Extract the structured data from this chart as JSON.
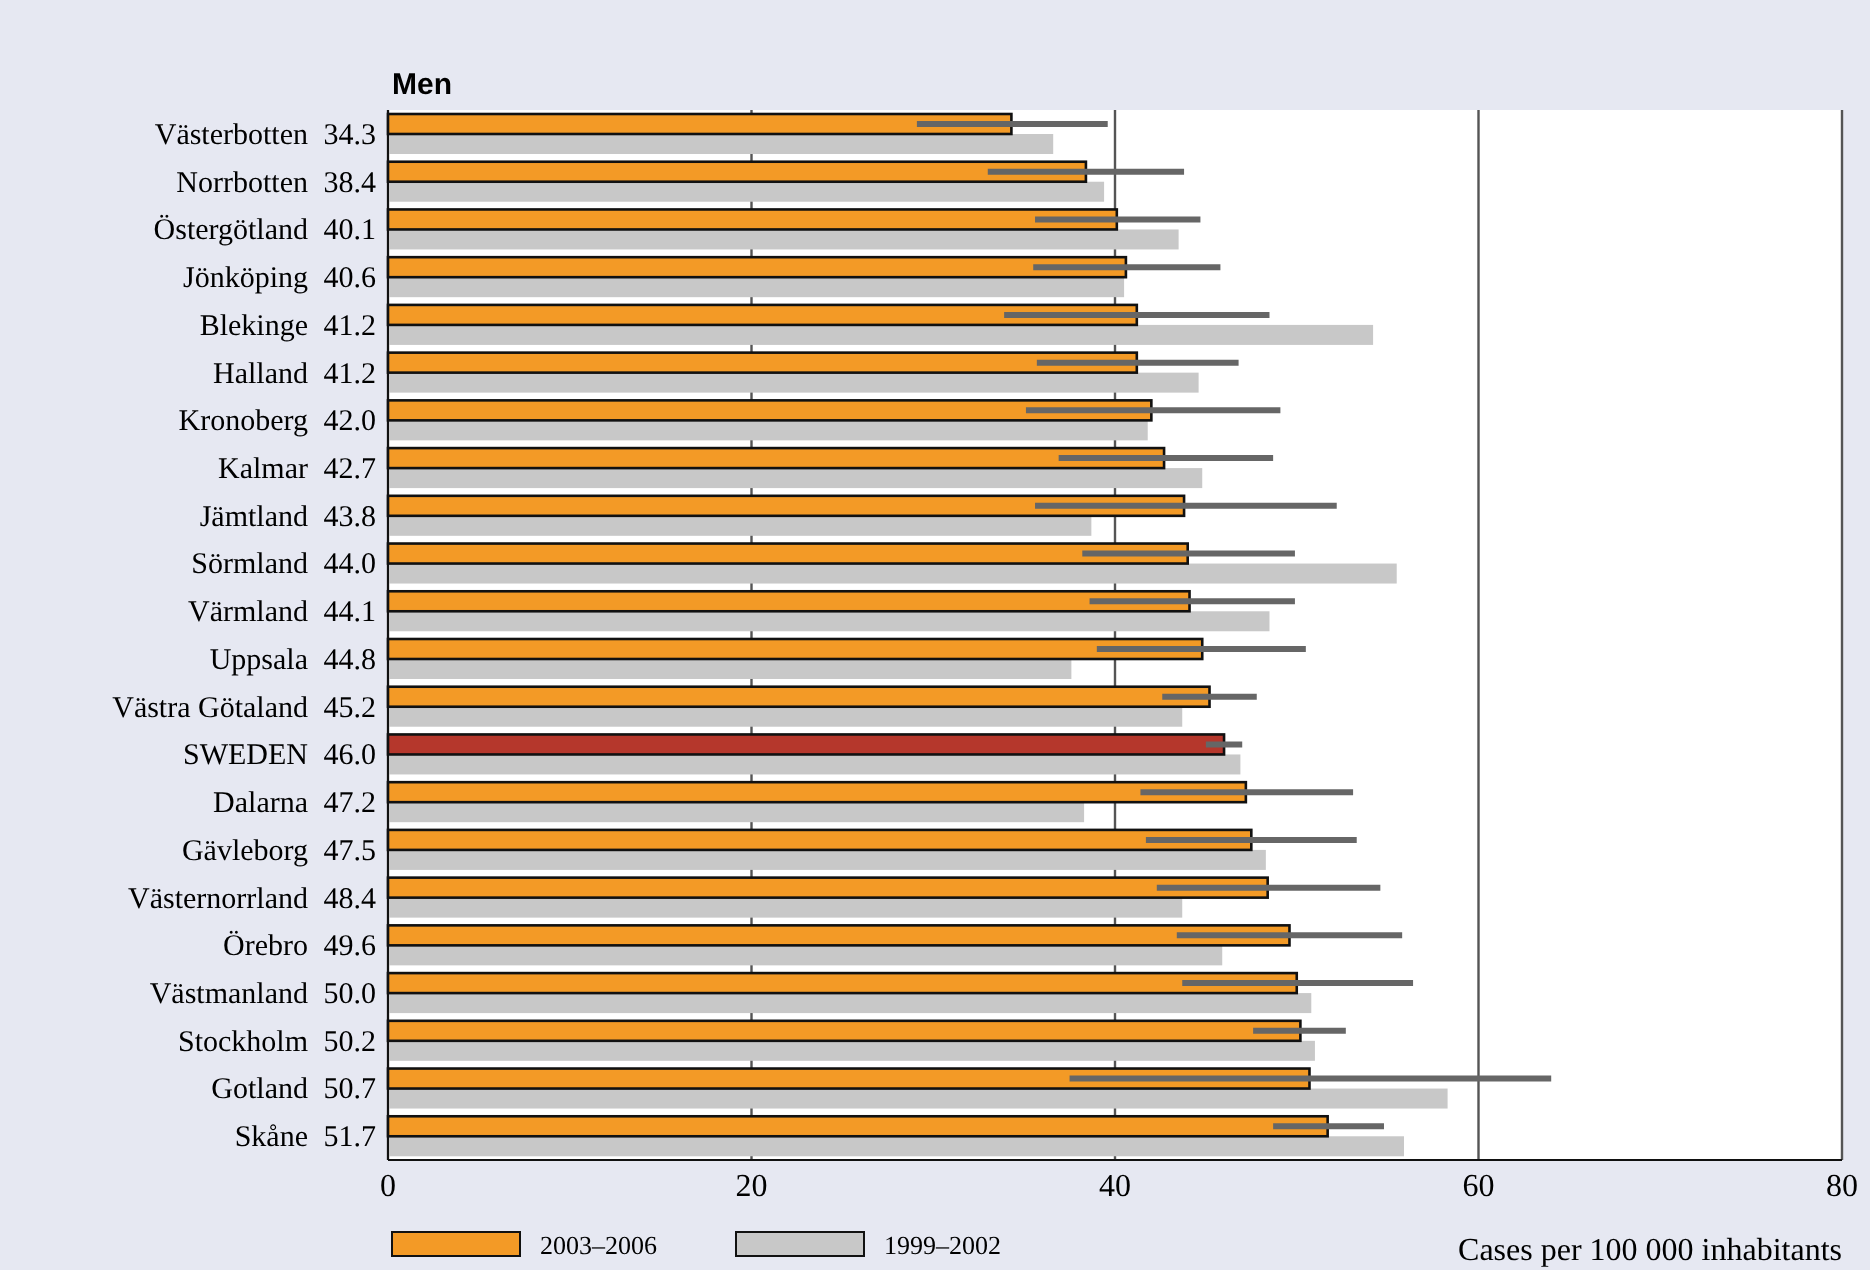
{
  "chart_data": {
    "type": "bar",
    "orientation": "horizontal",
    "title": "Men",
    "xlabel": "Cases per 100 000 inhabitants",
    "categories": [
      "Västerbotten",
      "Norrbotten",
      "Östergötland",
      "Jönköping",
      "Blekinge",
      "Halland",
      "Kronoberg",
      "Kalmar",
      "Jämtland",
      "Sörmland",
      "Värmland",
      "Uppsala",
      "Västra Götaland",
      "SWEDEN",
      "Dalarna",
      "Gävleborg",
      "Västernorrland",
      "Örebro",
      "Västmanland",
      "Stockholm",
      "Gotland",
      "Skåne"
    ],
    "series": [
      {
        "name": "2003–2006",
        "color": "#f39a26",
        "colors": [
          "#f39a26",
          "#f39a26",
          "#f39a26",
          "#f39a26",
          "#f39a26",
          "#f39a26",
          "#f39a26",
          "#f39a26",
          "#f39a26",
          "#f39a26",
          "#f39a26",
          "#f39a26",
          "#f39a26",
          "#b5372c",
          "#f39a26",
          "#f39a26",
          "#f39a26",
          "#f39a26",
          "#f39a26",
          "#f39a26",
          "#f39a26",
          "#f39a26"
        ],
        "values": [
          34.3,
          38.4,
          40.1,
          40.6,
          41.2,
          41.2,
          42.0,
          42.7,
          43.8,
          44.0,
          44.1,
          44.8,
          45.2,
          46.0,
          47.2,
          47.5,
          48.4,
          49.6,
          50.0,
          50.2,
          50.7,
          51.7
        ],
        "value_labels": [
          "34.3",
          "38.4",
          "40.1",
          "40.6",
          "41.2",
          "41.2",
          "42.0",
          "42.7",
          "43.8",
          "44.0",
          "44.1",
          "44.8",
          "45.2",
          "46.0",
          "47.2",
          "47.5",
          "48.4",
          "49.6",
          "50.0",
          "50.2",
          "50.7",
          "51.7"
        ],
        "errors": [
          [
            29.1,
            39.6
          ],
          [
            33.0,
            43.8
          ],
          [
            35.6,
            44.7
          ],
          [
            35.5,
            45.8
          ],
          [
            33.9,
            48.5
          ],
          [
            35.7,
            46.8
          ],
          [
            35.1,
            49.1
          ],
          [
            36.9,
            48.7
          ],
          [
            35.6,
            52.2
          ],
          [
            38.2,
            49.9
          ],
          [
            38.6,
            49.9
          ],
          [
            39.0,
            50.5
          ],
          [
            42.6,
            47.8
          ],
          [
            45.0,
            47.0
          ],
          [
            41.4,
            53.1
          ],
          [
            41.7,
            53.3
          ],
          [
            42.3,
            54.6
          ],
          [
            43.4,
            55.8
          ],
          [
            43.7,
            56.4
          ],
          [
            47.6,
            52.7
          ],
          [
            37.5,
            64.0
          ],
          [
            48.7,
            54.8
          ]
        ]
      },
      {
        "name": "1999–2002",
        "color": "#c8c8c8",
        "values": [
          36.6,
          39.4,
          43.5,
          40.5,
          54.2,
          44.6,
          41.8,
          44.8,
          38.7,
          55.5,
          48.5,
          37.6,
          43.7,
          46.9,
          38.3,
          48.3,
          43.7,
          45.9,
          50.8,
          51.0,
          58.3,
          55.9
        ]
      }
    ],
    "xlim": [
      0,
      80
    ],
    "xticks": [
      0,
      20,
      40,
      60,
      80
    ],
    "grid": "x",
    "legend": "bottom"
  }
}
